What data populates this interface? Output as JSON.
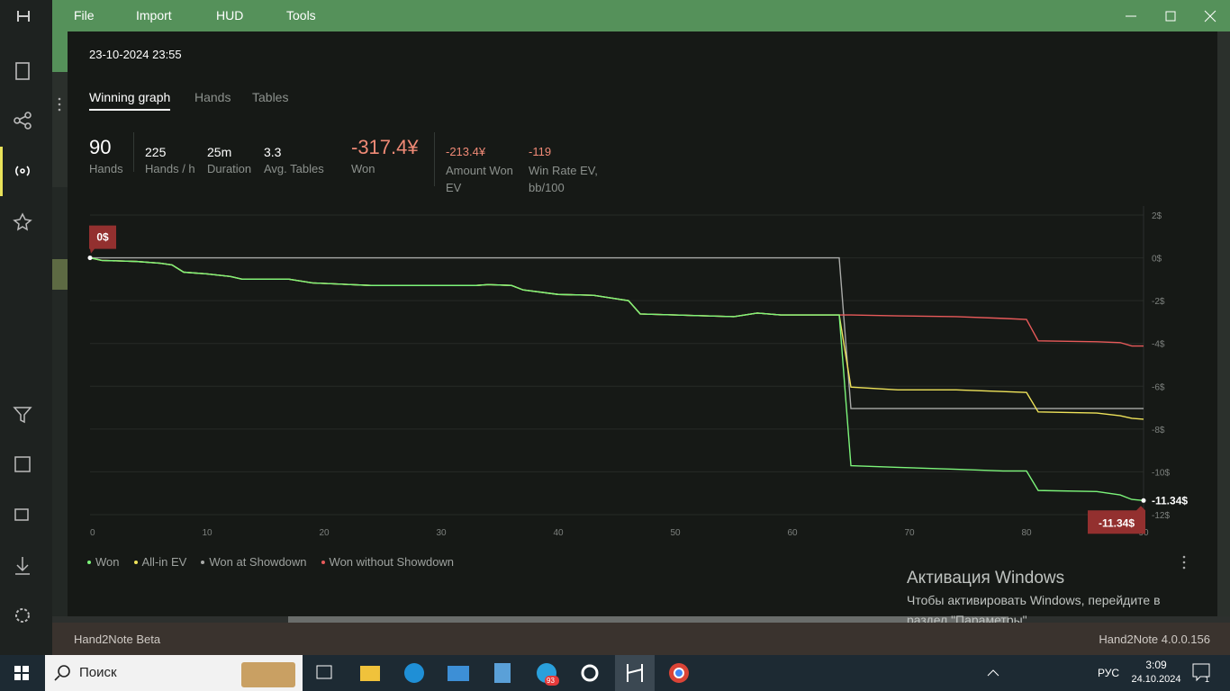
{
  "menu": [
    "File",
    "Import",
    "HUD",
    "Tools"
  ],
  "dialog": {
    "date": "23-10-2024 23:55",
    "tabs": [
      "Winning graph",
      "Hands",
      "Tables"
    ],
    "stats": [
      {
        "value": "90",
        "label": "Hands"
      },
      {
        "value": "225",
        "label": "Hands / h"
      },
      {
        "value": "25m",
        "label": "Duration"
      },
      {
        "value": "3.3",
        "label": "Avg. Tables"
      },
      {
        "value": "-317.4¥",
        "label": "Won"
      },
      {
        "value": "-213.4¥",
        "label": "Amount Won EV"
      },
      {
        "value": "-119",
        "label": "Win Rate EV, bb/100"
      }
    ]
  },
  "chart_data": {
    "type": "line",
    "x": [
      0,
      1,
      4,
      6,
      7,
      8,
      10,
      12,
      13,
      17,
      19,
      24,
      33,
      34,
      36,
      37,
      40,
      43,
      46,
      47,
      55,
      57,
      59,
      64,
      65,
      69,
      74,
      78,
      80,
      81,
      86,
      88,
      89,
      90
    ],
    "series": [
      {
        "name": "Won at Showdown",
        "color": "#a9aaa8",
        "values": [
          0,
          0,
          0,
          0,
          0,
          0,
          0,
          0,
          0,
          0,
          0,
          0,
          0,
          0,
          0,
          0,
          0,
          0,
          0,
          0,
          0,
          0,
          0,
          0,
          -7.04,
          -7.04,
          -7.04,
          -7.04,
          -7.04,
          -7.04,
          -7.04,
          -7.04,
          -7.04,
          -7.04
        ]
      },
      {
        "name": "Won without Showdown",
        "color": "#e85a5a",
        "values": [
          0,
          -0.12,
          -0.17,
          -0.25,
          -0.33,
          -0.67,
          -0.75,
          -0.87,
          -1.0,
          -1.0,
          -1.17,
          -1.29,
          -1.29,
          -1.25,
          -1.29,
          -1.5,
          -1.71,
          -1.75,
          -2.0,
          -2.62,
          -2.75,
          -2.58,
          -2.67,
          -2.67,
          -2.67,
          -2.71,
          -2.75,
          -2.83,
          -2.88,
          -3.88,
          -3.92,
          -3.96,
          -4.12,
          -4.12
        ]
      },
      {
        "name": "All-in EV",
        "color": "#efe35a",
        "values": [
          0,
          -0.12,
          -0.17,
          -0.25,
          -0.33,
          -0.67,
          -0.75,
          -0.87,
          -1.0,
          -1.0,
          -1.17,
          -1.29,
          -1.29,
          -1.25,
          -1.29,
          -1.5,
          -1.71,
          -1.75,
          -2.0,
          -2.62,
          -2.75,
          -2.58,
          -2.67,
          -2.67,
          -6.04,
          -6.17,
          -6.17,
          -6.25,
          -6.29,
          -7.2,
          -7.25,
          -7.38,
          -7.5,
          -7.54
        ]
      },
      {
        "name": "Won",
        "color": "#7cf47a",
        "values": [
          0,
          -0.12,
          -0.17,
          -0.25,
          -0.33,
          -0.67,
          -0.75,
          -0.87,
          -1.0,
          -1.0,
          -1.17,
          -1.29,
          -1.29,
          -1.25,
          -1.29,
          -1.5,
          -1.71,
          -1.75,
          -2.0,
          -2.62,
          -2.75,
          -2.58,
          -2.67,
          -2.67,
          -9.71,
          -9.79,
          -9.88,
          -9.96,
          -9.96,
          -10.87,
          -10.92,
          -11.08,
          -11.29,
          -11.34
        ]
      }
    ],
    "legend_order": [
      "Won",
      "All-in EV",
      "Won at Showdown",
      "Won without Showdown"
    ],
    "xlim": [
      0,
      90
    ],
    "xticks": [
      0,
      10,
      20,
      30,
      40,
      50,
      60,
      70,
      80,
      90
    ],
    "ylim": [
      -12,
      2
    ],
    "yticks": [
      {
        "value": 2,
        "label": "2$"
      },
      {
        "value": 0,
        "label": "0$"
      },
      {
        "value": -2,
        "label": "-2$"
      },
      {
        "value": -4,
        "label": "-4$"
      },
      {
        "value": -6,
        "label": "-6$"
      },
      {
        "value": -8,
        "label": "-8$"
      },
      {
        "value": -10,
        "label": "-10$"
      },
      {
        "value": -12,
        "label": "-12$"
      }
    ],
    "grid": true,
    "start_tooltip": "0$",
    "end_value_label": "-11.34$",
    "end_tooltip": "-11.34$"
  },
  "status_bar": {
    "left": "Hand2Note Beta",
    "right": "Hand2Note 4.0.0.156"
  },
  "watermark": {
    "title": "Активация Windows",
    "text": "Чтобы активировать Windows, перейдите в раздел \"Параметры\"."
  },
  "taskbar": {
    "search": "Поиск",
    "badge": "93",
    "language": "РУС",
    "time": "3:09",
    "date": "24.10.2024",
    "notifications": "1"
  }
}
